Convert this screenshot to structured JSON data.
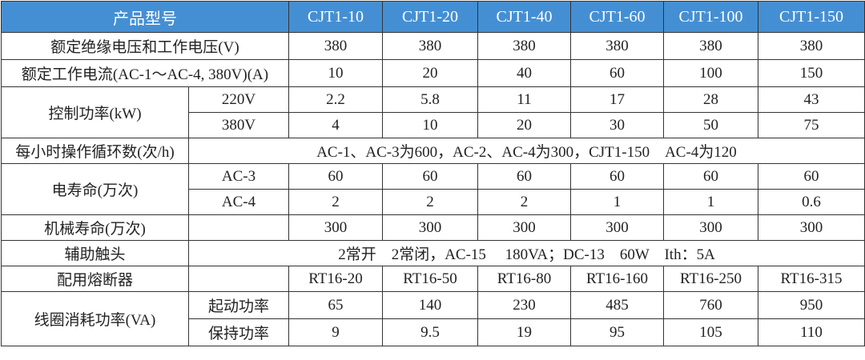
{
  "header": {
    "label": "产品型号",
    "models": [
      "CJT1-10",
      "CJT1-20",
      "CJT1-40",
      "CJT1-60",
      "CJT1-100",
      "CJT1-150"
    ]
  },
  "colors": {
    "header_bg": "#448fd3",
    "header_text": "#ffffff"
  },
  "rows": {
    "insulation_voltage": {
      "label": "额定绝缘电压和工作电压(V)",
      "values": [
        "380",
        "380",
        "380",
        "380",
        "380",
        "380"
      ]
    },
    "rated_current": {
      "label": "额定工作电流(AC-1～AC-4, 380V)(A)",
      "values": [
        "10",
        "20",
        "40",
        "60",
        "100",
        "150"
      ]
    },
    "control_power": {
      "label": "控制功率(kW)",
      "sub": [
        {
          "label": "220V",
          "values": [
            "2.2",
            "5.8",
            "11",
            "17",
            "28",
            "43"
          ]
        },
        {
          "label": "380V",
          "values": [
            "4",
            "10",
            "20",
            "30",
            "50",
            "75"
          ]
        }
      ]
    },
    "operations_per_hour": {
      "label": "每小时操作循环数(次/h)",
      "value": "AC-1、AC-3为600，AC-2、AC-4为300，CJT1-150　AC-4为120"
    },
    "electrical_life": {
      "label": "电寿命(万次)",
      "sub": [
        {
          "label": "AC-3",
          "values": [
            "60",
            "60",
            "60",
            "60",
            "60",
            "60"
          ]
        },
        {
          "label": "AC-4",
          "values": [
            "2",
            "2",
            "2",
            "1",
            "1",
            "0.6"
          ]
        }
      ]
    },
    "mechanical_life": {
      "label": "机械寿命(万次)",
      "values": [
        "300",
        "300",
        "300",
        "300",
        "300",
        "300"
      ]
    },
    "auxiliary_contacts": {
      "label": "辅助触头",
      "value": "2常开　2常闭，AC-15　 180VA；DC-13　60W　Ith：5A"
    },
    "fuse": {
      "label": "配用熔断器",
      "values": [
        "RT16-20",
        "RT16-50",
        "RT16-80",
        "RT16-160",
        "RT16-250",
        "RT16-315"
      ]
    },
    "coil_power": {
      "label": "线圈消耗功率(VA)",
      "sub": [
        {
          "label": "起动功率",
          "values": [
            "65",
            "140",
            "230",
            "485",
            "760",
            "950"
          ]
        },
        {
          "label": "保持功率",
          "values": [
            "9",
            "9.5",
            "19",
            "95",
            "105",
            "110"
          ]
        }
      ]
    }
  }
}
